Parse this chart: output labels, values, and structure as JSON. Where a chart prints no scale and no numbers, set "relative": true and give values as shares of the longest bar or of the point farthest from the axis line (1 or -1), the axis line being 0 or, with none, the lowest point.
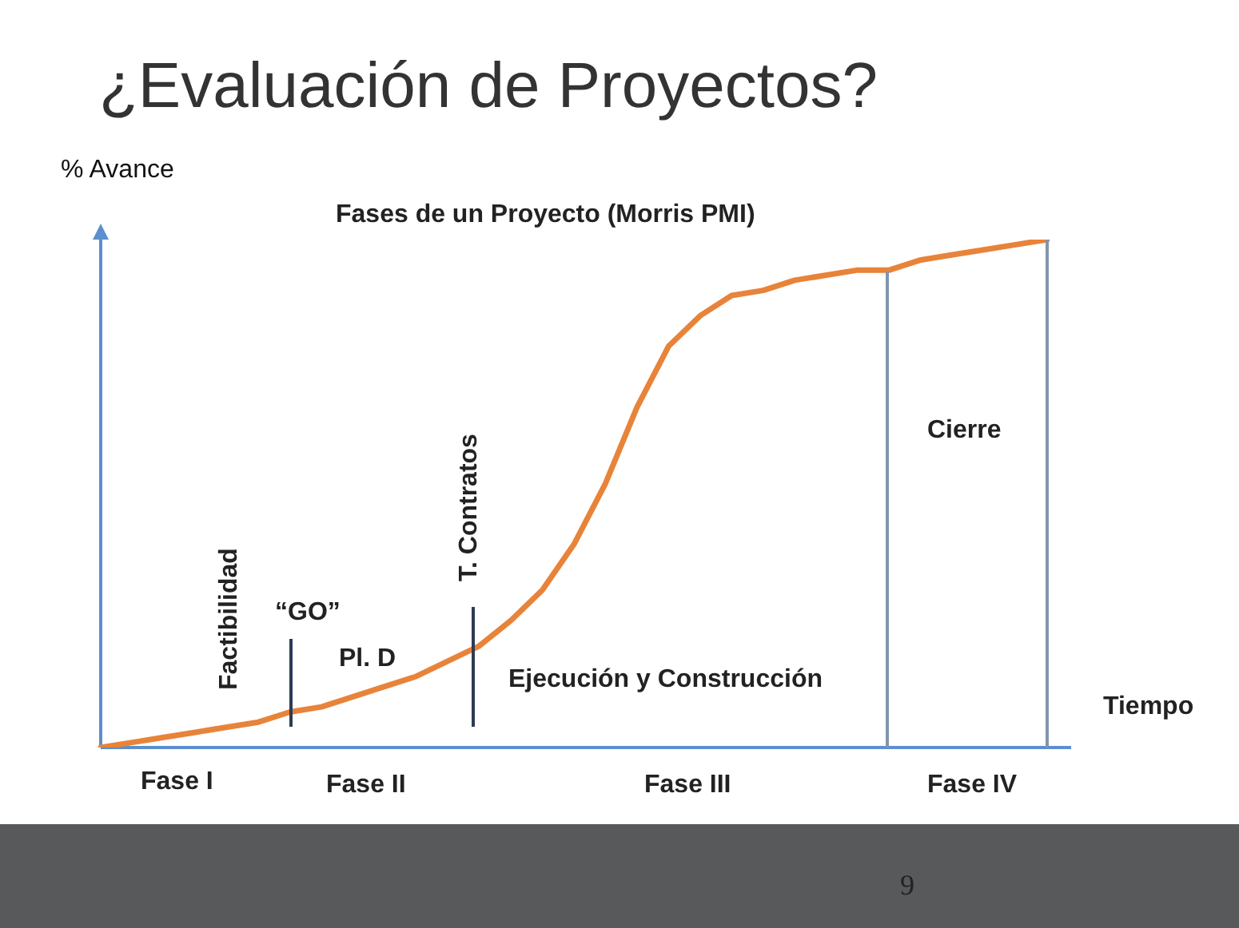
{
  "chart_data": {
    "type": "line",
    "title": "¿Evaluación de Proyectos?",
    "subtitle": "Fases de un Proyecto (Morris PMI)",
    "ylabel": "% Avance",
    "xlabel": "Tiempo",
    "relative": true,
    "legend": false,
    "marker": "none",
    "categories": [
      null,
      null,
      null,
      null,
      null,
      null,
      null,
      null,
      null,
      null,
      null,
      null,
      null,
      null,
      null,
      null,
      null,
      null,
      null,
      null,
      null,
      null,
      null,
      null,
      null,
      null,
      null,
      null,
      null,
      null,
      null
    ],
    "series": [
      {
        "color": "#e8833a",
        "values": [
          0,
          0.01,
          0.02,
          0.03,
          0.04,
          0.05,
          0.07,
          0.08,
          0.1,
          0.12,
          0.14,
          0.17,
          0.2,
          0.25,
          0.31,
          0.4,
          0.52,
          0.67,
          0.79,
          0.85,
          0.89,
          0.9,
          0.92,
          0.93,
          0.94,
          0.94,
          0.96,
          0.97,
          0.98,
          0.99,
          1
        ]
      }
    ],
    "annotations": [
      "Factibilidad",
      "T. Contratos",
      "“GO”",
      "Pl. D",
      "Ejecución y Construcción",
      "Cierre",
      "Fase I",
      "Fase II",
      "Fase III",
      "Fase IV",
      "9"
    ]
  }
}
